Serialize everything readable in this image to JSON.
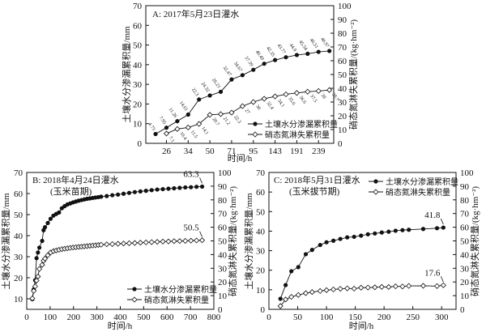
{
  "chart_data": [
    {
      "id": "A",
      "type": "line",
      "title": "A: 2017年5月23日灌水",
      "subtitle": "",
      "xlabel": "时间/h",
      "ylabel_left": "土壤水分渗漏累积量/mm",
      "ylabel_right": "硝态氮淋失累积量/(kg·hm⁻²)",
      "x_scale": "categorical",
      "x_ticks": [
        "26",
        "34",
        "50",
        "71",
        "95",
        "143",
        "191",
        "239"
      ],
      "ylim_left": [
        0,
        70
      ],
      "yticks_left": [
        0,
        10,
        20,
        30,
        40,
        50,
        60,
        70
      ],
      "ylim_right": [
        0,
        100
      ],
      "yticks_right": [
        0,
        10,
        20,
        30,
        40,
        50,
        60,
        70,
        80,
        90,
        100
      ],
      "legend": {
        "position": "bottom-right",
        "entries": [
          "土壤水分渗漏累积量",
          "硝态氮淋失累积量"
        ]
      },
      "series": [
        {
          "name": "土壤水分渗漏累积量",
          "axis": "left",
          "marker": "filled-circle",
          "values": [
            4.73,
            7.95,
            11.26,
            14.61,
            22.3,
            24.32,
            26.21,
            32.47,
            34.67,
            37.39,
            40.49,
            42.35,
            43.77,
            44.9,
            45.54,
            46.51,
            46.97
          ],
          "labels": [
            "4.73",
            "7.95",
            "11.26",
            "14.61",
            "22.3",
            "24.32",
            "26.21",
            "32.47",
            "34.67",
            "37.39",
            "40.49",
            "42.35",
            "43.77",
            "44.9",
            "45.54",
            "46.51",
            "46.97"
          ]
        },
        {
          "name": "硝态氮淋失累积量",
          "axis": "right",
          "marker": "open-diamond",
          "values": [
            7.1,
            10.4,
            11.5,
            14.1,
            20.7,
            21.2,
            22.3,
            27,
            30,
            32.4,
            34.1,
            35.6,
            36.6,
            37.5,
            38,
            38.7
          ],
          "labels": [
            "7.1",
            "10.4",
            "11.5",
            "14.1",
            "20.7",
            "21.2",
            "22.3",
            "27",
            "30",
            "32.4",
            "34.1",
            "35.6",
            "36.6",
            "37.5",
            "38",
            "38.7"
          ]
        }
      ]
    },
    {
      "id": "B",
      "type": "line",
      "title": "B: 2018年4月24日灌水",
      "subtitle": "(玉米苗期)",
      "xlabel": "时间/h",
      "ylabel_left": "土壤水分渗漏累积量/mm",
      "ylabel_right": "硝态氮淋失累积量/(kg·hm⁻²)",
      "xlim": [
        0,
        800
      ],
      "xticks": [
        0,
        100,
        200,
        300,
        400,
        500,
        600,
        700,
        800
      ],
      "ylim_left": [
        5,
        70
      ],
      "yticks_left": [
        10,
        20,
        30,
        40,
        50,
        60,
        70
      ],
      "ylim_right": [
        0,
        100
      ],
      "yticks_right": [
        0,
        10,
        20,
        30,
        40,
        50,
        60,
        70,
        80,
        90,
        100
      ],
      "legend": {
        "position": "bottom-right",
        "entries": [
          "土壤水分渗漏累积量",
          "硝态氮淋失累积量"
        ]
      },
      "annotations": [
        {
          "text": "63.3",
          "series": 0,
          "x": 750,
          "y": 63.3
        },
        {
          "text": "50.5",
          "series": 1,
          "x": 750,
          "y": 50.5
        }
      ],
      "series": [
        {
          "name": "土壤水分渗漏累积量",
          "axis": "left",
          "marker": "filled-circle",
          "x": [
            24,
            30,
            36,
            42,
            48,
            54,
            66,
            72,
            78,
            90,
            102,
            114,
            126,
            138,
            150,
            162,
            174,
            186,
            198,
            210,
            222,
            234,
            246,
            258,
            270,
            282,
            294,
            306,
            318,
            342,
            366,
            390,
            414,
            438,
            462,
            486,
            510,
            534,
            558,
            582,
            606,
            630,
            654,
            678,
            702,
            726,
            750
          ],
          "y": [
            9.8,
            14.5,
            18.8,
            29.3,
            32.0,
            34.3,
            37.5,
            42.6,
            44.0,
            46.0,
            48.0,
            49.5,
            50.3,
            51.0,
            53.0,
            54.0,
            54.8,
            55.3,
            55.8,
            56.2,
            56.6,
            56.9,
            57.2,
            57.5,
            57.7,
            57.9,
            58.1,
            58.3,
            58.5,
            58.8,
            59.2,
            59.5,
            59.9,
            60.3,
            60.7,
            61.0,
            61.3,
            61.6,
            61.9,
            62.1,
            62.3,
            62.5,
            62.7,
            62.9,
            63.0,
            63.2,
            63.3
          ]
        },
        {
          "name": "硝态氮淋失累积量",
          "axis": "right",
          "marker": "open-diamond",
          "x": [
            24,
            30,
            36,
            42,
            48,
            54,
            66,
            72,
            78,
            90,
            102,
            114,
            126,
            138,
            150,
            162,
            174,
            186,
            198,
            210,
            222,
            234,
            246,
            258,
            270,
            282,
            294,
            306,
            318,
            342,
            366,
            390,
            414,
            438,
            462,
            486,
            510,
            534,
            558,
            582,
            606,
            630,
            654,
            678,
            702,
            726,
            750
          ],
          "y": [
            8.0,
            13.5,
            16.8,
            21.0,
            24.0,
            29.5,
            32.5,
            35.5,
            37.0,
            39.5,
            41.5,
            42.5,
            43.0,
            43.5,
            44.0,
            44.3,
            44.6,
            44.9,
            45.2,
            45.4,
            45.6,
            45.8,
            46.0,
            46.2,
            46.4,
            46.6,
            46.8,
            47.0,
            47.2,
            47.5,
            47.7,
            47.9,
            48.1,
            48.3,
            48.5,
            48.7,
            48.9,
            49.1,
            49.3,
            49.5,
            49.6,
            49.8,
            49.9,
            50.0,
            50.2,
            50.3,
            50.5
          ]
        }
      ]
    },
    {
      "id": "C",
      "type": "line",
      "title": "C: 2018年5月31日灌水",
      "subtitle": "(玉米拔节期)",
      "xlabel": "时间/h",
      "ylabel_left": "土壤水分渗漏累积量/mm",
      "ylabel_right": "硝态氮淋失累积量/(kg·hm⁻²)",
      "xlim": [
        0,
        325
      ],
      "xticks": [
        0,
        50,
        100,
        150,
        200,
        250,
        300
      ],
      "ylim_left": [
        0,
        70
      ],
      "yticks_left": [
        0,
        10,
        20,
        30,
        40,
        50,
        60,
        70
      ],
      "ylim_right": [
        0,
        100
      ],
      "yticks_right": [
        0,
        10,
        20,
        30,
        40,
        50,
        60,
        70,
        80,
        90,
        100
      ],
      "legend": {
        "position": "top-right",
        "entries": [
          "土壤水分渗漏累积量",
          "硝态氮淋失累积量"
        ]
      },
      "annotations": [
        {
          "text": "41.8",
          "series": 0,
          "x": 303,
          "y": 41.8
        },
        {
          "text": "17.6",
          "series": 1,
          "x": 303,
          "y": 17.6
        }
      ],
      "series": [
        {
          "name": "土壤水分渗漏累积量",
          "axis": "left",
          "marker": "filled-circle",
          "x": [
            20,
            29,
            39,
            51,
            64,
            75,
            89,
            100,
            112,
            124,
            136,
            148,
            160,
            172,
            184,
            196,
            208,
            220,
            232,
            243,
            268,
            292,
            303
          ],
          "y": [
            5.4,
            12.4,
            19.5,
            21.6,
            28.2,
            30.4,
            32.9,
            34.3,
            35.1,
            36.0,
            36.8,
            37.1,
            37.7,
            38.4,
            38.8,
            39.3,
            39.7,
            40.2,
            40.5,
            40.7,
            41.1,
            41.5,
            41.8
          ]
        },
        {
          "name": "硝态氮淋失累积量",
          "axis": "right",
          "marker": "open-diamond",
          "x": [
            20,
            29,
            39,
            51,
            64,
            75,
            89,
            100,
            112,
            124,
            136,
            148,
            160,
            172,
            184,
            196,
            208,
            220,
            232,
            243,
            268,
            292,
            303
          ],
          "y": [
            2.4,
            7.2,
            9.1,
            10.5,
            11.8,
            12.6,
            13.4,
            14.0,
            14.5,
            15.0,
            15.3,
            15.1,
            15.8,
            15.9,
            16.1,
            16.4,
            16.3,
            16.8,
            16.7,
            17.1,
            17.2,
            17.0,
            17.6
          ]
        }
      ]
    }
  ]
}
